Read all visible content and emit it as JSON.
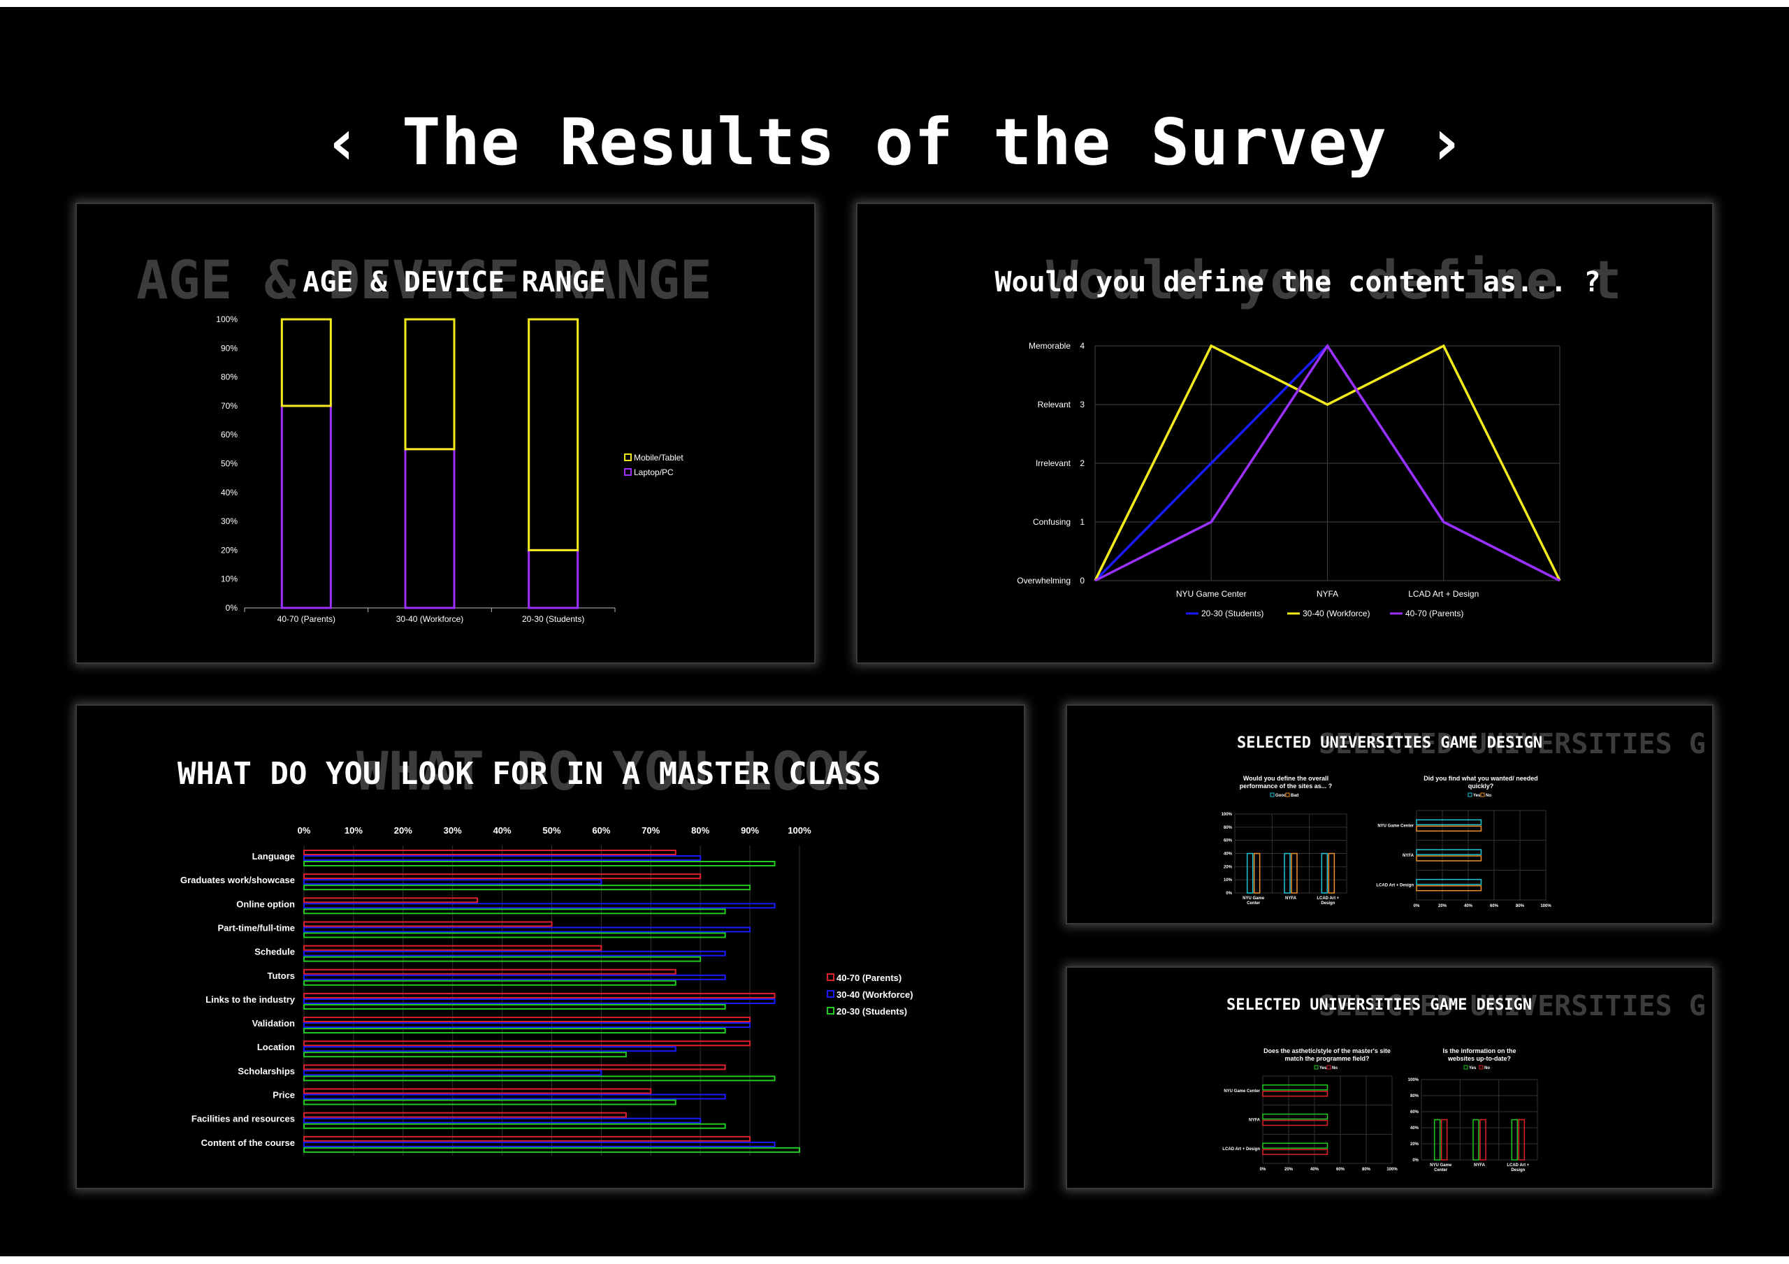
{
  "main_title": "‹  The Results of the Survey  ›",
  "age_device": {
    "title": "AGE & DEVICE RANGE",
    "ghost": "AGE & DEVICE RANGE",
    "chart_data": {
      "type": "bar",
      "stacked": true,
      "title": "AGE & DEVICE RANGE",
      "categories": [
        "40-70 (Parents)",
        "30-40 (Workforce)",
        "20-30 (Students)"
      ],
      "series": [
        {
          "name": "Laptop/PC",
          "values": [
            70,
            55,
            20
          ],
          "color": "#9b30ff"
        },
        {
          "name": "Mobile/Tablet",
          "values": [
            30,
            45,
            80
          ],
          "color": "#f2ea1a"
        }
      ],
      "ylim": [
        0,
        100
      ],
      "yticks": [
        "0%",
        "10%",
        "20%",
        "30%",
        "40%",
        "50%",
        "60%",
        "70%",
        "80%",
        "90%",
        "100%"
      ],
      "legend": [
        "Mobile/Tablet",
        "Laptop/PC"
      ],
      "legend_position": "right"
    }
  },
  "content_def": {
    "title": "Would you define the content as... ?",
    "ghost": "Would you define t",
    "chart_data": {
      "type": "line",
      "title": "Would you define the content as... ?",
      "x": [
        "",
        "NYU Game Center",
        "NYFA",
        "LCAD Art + Design",
        ""
      ],
      "ylim": [
        0,
        4
      ],
      "yticks": [
        {
          "label": "Overwhelming",
          "value": "0"
        },
        {
          "label": "Confusing",
          "value": "1"
        },
        {
          "label": "Irrelevant",
          "value": "2"
        },
        {
          "label": "Relevant",
          "value": "3"
        },
        {
          "label": "Memorable",
          "value": "4"
        }
      ],
      "series": [
        {
          "name": "20-30 (Students)",
          "values": [
            0,
            2,
            4,
            1,
            0
          ],
          "color": "#1a1aff"
        },
        {
          "name": "30-40 (Workforce)",
          "values": [
            0,
            4,
            3,
            4,
            0
          ],
          "color": "#f2ea1a"
        },
        {
          "name": "40-70 (Parents)",
          "values": [
            0,
            1,
            4,
            1,
            0
          ],
          "color": "#9b30ff"
        }
      ],
      "legend_position": "bottom"
    }
  },
  "master_class": {
    "title": "WHAT DO YOU LOOK FOR IN A MASTER CLASS",
    "ghost": "WHAT DO YOU LOOK",
    "chart_data": {
      "type": "bar",
      "orientation": "horizontal",
      "title": "WHAT DO YOU LOOK FOR IN A MASTER CLASS",
      "xlim": [
        0,
        100
      ],
      "xticks": [
        "0%",
        "10%",
        "20%",
        "30%",
        "40%",
        "50%",
        "60%",
        "70%",
        "80%",
        "90%",
        "100%"
      ],
      "categories": [
        "Language",
        "Graduates work/showcase",
        "Online option",
        "Part-time/full-time",
        "Schedule",
        "Tutors",
        "Links to the industry",
        "Validation",
        "Location",
        "Scholarships",
        "Price",
        "Facilities and resources",
        "Content of the course"
      ],
      "series": [
        {
          "name": "40-70 (Parents)",
          "color": "#e0202a",
          "values": [
            75,
            80,
            35,
            50,
            60,
            75,
            95,
            90,
            90,
            85,
            70,
            65,
            90
          ]
        },
        {
          "name": "30-40 (Workforce)",
          "color": "#1a1aff",
          "values": [
            80,
            60,
            95,
            90,
            85,
            85,
            95,
            90,
            75,
            60,
            85,
            80,
            95
          ]
        },
        {
          "name": "20-30 (Students)",
          "color": "#1fcc1f",
          "values": [
            95,
            90,
            85,
            85,
            80,
            75,
            85,
            85,
            65,
            95,
            75,
            85,
            100
          ]
        }
      ],
      "legend": [
        "40-70 (Parents)",
        "30-40 (Workforce)",
        "20-30 (Students)"
      ],
      "legend_position": "right"
    }
  },
  "selected1": {
    "title": "SELECTED UNIVERSITIES GAME DESIGN",
    "ghost": "SELECTED UNIVERSITIES G",
    "charts": [
      {
        "type": "bar",
        "title_line1": "Would you define the overall",
        "title_line2": "performance of the sites as... ?",
        "categories_line1": [
          "NYU Game",
          "NYFA",
          "LCAD Art +"
        ],
        "categories_line2": [
          "Center",
          "",
          "Design"
        ],
        "series": [
          {
            "name": "Good",
            "color": "#1fc6d9",
            "values": [
              50,
              50,
              50
            ]
          },
          {
            "name": "Bad",
            "color": "#f0922a",
            "values": [
              50,
              50,
              50
            ]
          }
        ],
        "ylim": [
          0,
          100
        ],
        "yticks": [
          "0%",
          "10%",
          "20%",
          "40%",
          "60%",
          "80%",
          "100%"
        ]
      },
      {
        "type": "bar",
        "orientation": "horizontal",
        "title_line1": "Did you find what you wanted/ needed",
        "title_line2": "quickly?",
        "categories": [
          "NYU Game Center",
          "NYFA",
          "LCAD Art + Design"
        ],
        "series": [
          {
            "name": "Yes",
            "color": "#1fc6d9",
            "values": [
              50,
              50,
              50
            ]
          },
          {
            "name": "No",
            "color": "#f0922a",
            "values": [
              50,
              50,
              50
            ]
          }
        ],
        "xlim": [
          0,
          100
        ],
        "xticks": [
          "0%",
          "20%",
          "40%",
          "60%",
          "80%",
          "100%"
        ]
      }
    ]
  },
  "selected2": {
    "title": "SELECTED UNIVERSITIES GAME DESIGN",
    "ghost": "SELECTED UNIVERSITIES G",
    "charts": [
      {
        "type": "bar",
        "orientation": "horizontal",
        "title_line1": "Does the asthetic/style of the master's site",
        "title_line2": "match the programme field?",
        "categories": [
          "NYU Game Center",
          "NYFA",
          "LCAD Art + Design"
        ],
        "series": [
          {
            "name": "Yes",
            "color": "#1fcc1f",
            "values": [
              50,
              50,
              50
            ]
          },
          {
            "name": "No",
            "color": "#e0202a",
            "values": [
              50,
              50,
              50
            ]
          }
        ],
        "xlim": [
          0,
          100
        ],
        "xticks": [
          "0%",
          "20%",
          "40%",
          "60%",
          "80%",
          "100%"
        ]
      },
      {
        "type": "bar",
        "title_line1": "Is the information on the",
        "title_line2": "websites up-to-date?",
        "categories_line1": [
          "NYU Game",
          "NYFA",
          "LCAD Art +"
        ],
        "categories_line2": [
          "Center",
          "",
          "Design"
        ],
        "series": [
          {
            "name": "Yes",
            "color": "#1fcc1f",
            "values": [
              50,
              50,
              50
            ]
          },
          {
            "name": "No",
            "color": "#e0202a",
            "values": [
              50,
              50,
              50
            ]
          }
        ],
        "ylim": [
          0,
          100
        ],
        "yticks": [
          "0%",
          "20%",
          "40%",
          "60%",
          "80%",
          "100%"
        ]
      }
    ]
  }
}
